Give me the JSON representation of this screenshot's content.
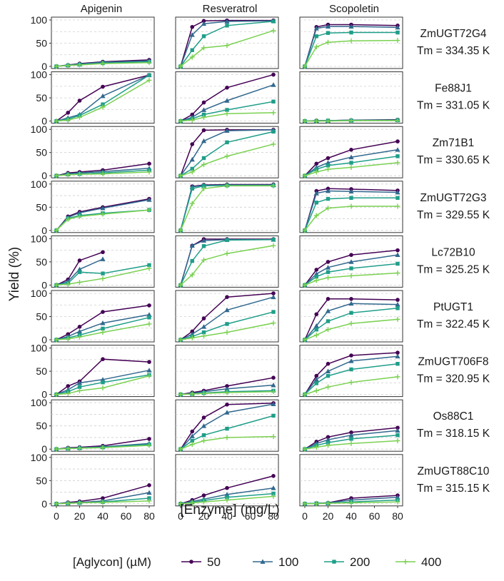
{
  "chart_data": {
    "type": "line",
    "xlabel": "[Enzyme] (mg/L)",
    "ylabel": "Yield (%)",
    "xlim": [
      0,
      80
    ],
    "ylim": [
      0,
      100
    ],
    "x": [
      0,
      10,
      20,
      40,
      80
    ],
    "x_ticks": [
      0,
      20,
      40,
      60,
      80
    ],
    "y_ticks": [
      0,
      50,
      100
    ],
    "columns": [
      "Apigenin",
      "Resveratrol",
      "Scopoletin"
    ],
    "legend_title": "[Aglycon] (µM)",
    "series": [
      {
        "name": "50",
        "color": "#440154",
        "marker": "circle"
      },
      {
        "name": "100",
        "color": "#31688e",
        "marker": "triangle"
      },
      {
        "name": "200",
        "color": "#1f9e89",
        "marker": "square"
      },
      {
        "name": "400",
        "color": "#7ad151",
        "marker": "plus"
      }
    ],
    "rows": [
      {
        "name": "ZmUGT72G4",
        "tm": "Tm = 334.35 K",
        "panels": [
          [
            [
              0,
              3,
              6,
              10,
              14
            ],
            [
              0,
              3,
              5,
              9,
              12
            ],
            [
              0,
              2,
              4,
              7,
              10
            ],
            [
              0,
              2,
              3,
              6,
              8
            ]
          ],
          [
            [
              0,
              85,
              98,
              99,
              99
            ],
            [
              0,
              68,
              92,
              97,
              98
            ],
            [
              0,
              35,
              65,
              88,
              97
            ],
            [
              0,
              20,
              40,
              45,
              77
            ]
          ],
          [
            [
              0,
              85,
              90,
              90,
              88
            ],
            [
              0,
              82,
              86,
              86,
              84
            ],
            [
              0,
              65,
              72,
              73,
              73
            ],
            [
              0,
              42,
              52,
              55,
              56
            ]
          ]
        ]
      },
      {
        "name": "Fe88J1",
        "tm": "Tm = 331.05 K",
        "panels": [
          [
            [
              0,
              18,
              44,
              74,
              99
            ],
            [
              0,
              7,
              14,
              54,
              99
            ],
            [
              0,
              4,
              12,
              36,
              99
            ],
            [
              0,
              2,
              8,
              30,
              88
            ]
          ],
          [
            [
              0,
              14,
              40,
              72,
              100
            ],
            [
              0,
              8,
              24,
              44,
              78
            ],
            [
              0,
              5,
              14,
              24,
              42
            ],
            [
              0,
              2,
              8,
              16,
              18
            ]
          ],
          [
            [
              0,
              1,
              1,
              2,
              3
            ],
            [
              0,
              1,
              1,
              2,
              2
            ],
            [
              0,
              0,
              1,
              1,
              2
            ],
            [
              0,
              0,
              0,
              1,
              1
            ]
          ]
        ]
      },
      {
        "name": "Zm71B1",
        "tm": "Tm = 330.65 K",
        "panels": [
          [
            [
              0,
              6,
              8,
              12,
              26
            ],
            [
              0,
              4,
              6,
              9,
              16
            ],
            [
              0,
              3,
              4,
              6,
              12
            ],
            [
              0,
              2,
              3,
              4,
              8
            ]
          ],
          [
            [
              0,
              68,
              98,
              99,
              99
            ],
            [
              0,
              35,
              75,
              97,
              99
            ],
            [
              0,
              15,
              38,
              72,
              95
            ],
            [
              0,
              8,
              24,
              42,
              68
            ]
          ],
          [
            [
              0,
              26,
              38,
              56,
              74
            ],
            [
              0,
              18,
              28,
              40,
              56
            ],
            [
              0,
              14,
              22,
              28,
              42
            ],
            [
              0,
              8,
              14,
              18,
              28
            ]
          ]
        ]
      },
      {
        "name": "ZmUGT72G3",
        "tm": "Tm = 329.55 K",
        "panels": [
          [
            [
              0,
              30,
              40,
              50,
              68
            ],
            [
              0,
              28,
              38,
              48,
              66
            ],
            [
              0,
              26,
              32,
              37,
              44
            ],
            [
              0,
              24,
              30,
              35,
              44
            ]
          ],
          [
            [
              0,
              95,
              98,
              99,
              99
            ],
            [
              0,
              94,
              97,
              98,
              98
            ],
            [
              0,
              90,
              96,
              97,
              97
            ],
            [
              0,
              58,
              90,
              96,
              96
            ]
          ],
          [
            [
              0,
              85,
              90,
              89,
              86
            ],
            [
              0,
              80,
              85,
              84,
              82
            ],
            [
              0,
              60,
              68,
              70,
              70
            ],
            [
              0,
              32,
              48,
              52,
              52
            ]
          ]
        ]
      },
      {
        "name": "Lc72B10",
        "tm": "Tm = 325.25 K",
        "panels": [
          [
            [
              0,
              12,
              53,
              71,
              null
            ],
            [
              0,
              8,
              34,
              56,
              null
            ],
            [
              0,
              4,
              28,
              25,
              43
            ],
            [
              0,
              2,
              6,
              14,
              36
            ]
          ],
          [
            [
              0,
              85,
              99,
              99,
              99
            ],
            [
              0,
              85,
              96,
              98,
              98
            ],
            [
              0,
              52,
              84,
              97,
              98
            ],
            [
              0,
              22,
              54,
              68,
              85
            ]
          ],
          [
            [
              0,
              33,
              50,
              65,
              75
            ],
            [
              0,
              24,
              38,
              50,
              65
            ],
            [
              0,
              18,
              28,
              36,
              46
            ],
            [
              0,
              10,
              16,
              20,
              26
            ]
          ]
        ]
      },
      {
        "name": "PtUGT1",
        "tm": "Tm = 322.45 K",
        "panels": [
          [
            [
              0,
              12,
              28,
              60,
              74
            ],
            [
              0,
              7,
              18,
              36,
              54
            ],
            [
              0,
              4,
              10,
              24,
              48
            ],
            [
              0,
              2,
              6,
              16,
              34
            ]
          ],
          [
            [
              0,
              18,
              46,
              92,
              100
            ],
            [
              0,
              12,
              28,
              64,
              92
            ],
            [
              0,
              7,
              16,
              34,
              60
            ],
            [
              0,
              4,
              8,
              16,
              36
            ]
          ],
          [
            [
              0,
              55,
              88,
              88,
              86
            ],
            [
              0,
              30,
              62,
              78,
              76
            ],
            [
              0,
              22,
              40,
              58,
              68
            ],
            [
              0,
              10,
              22,
              35,
              44
            ]
          ]
        ]
      },
      {
        "name": "ZmUGT706F8",
        "tm": "Tm = 320.95 K",
        "panels": [
          [
            [
              0,
              18,
              28,
              76,
              70
            ],
            [
              0,
              10,
              25,
              32,
              52
            ],
            [
              0,
              6,
              16,
              26,
              42
            ],
            [
              0,
              2,
              8,
              14,
              40
            ]
          ],
          [
            [
              0,
              4,
              8,
              18,
              36
            ],
            [
              0,
              2,
              6,
              12,
              20
            ],
            [
              0,
              1,
              3,
              6,
              8
            ],
            [
              0,
              1,
              2,
              4,
              6
            ]
          ],
          [
            [
              0,
              40,
              66,
              84,
              90
            ],
            [
              0,
              32,
              50,
              72,
              82
            ],
            [
              0,
              24,
              40,
              54,
              66
            ],
            [
              0,
              8,
              16,
              26,
              38
            ]
          ]
        ]
      },
      {
        "name": "Os88C1",
        "tm": "Tm = 318.15 K",
        "panels": [
          [
            [
              0,
              3,
              4,
              7,
              22
            ],
            [
              0,
              2,
              3,
              5,
              12
            ],
            [
              0,
              1,
              2,
              4,
              10
            ],
            [
              0,
              1,
              2,
              3,
              8
            ]
          ],
          [
            [
              0,
              38,
              68,
              96,
              99
            ],
            [
              0,
              28,
              50,
              79,
              97
            ],
            [
              0,
              18,
              30,
              44,
              72
            ],
            [
              0,
              10,
              18,
              25,
              27
            ]
          ],
          [
            [
              0,
              16,
              26,
              36,
              46
            ],
            [
              0,
              12,
              20,
              30,
              40
            ],
            [
              0,
              8,
              14,
              22,
              30
            ],
            [
              0,
              4,
              8,
              12,
              18
            ]
          ]
        ]
      },
      {
        "name": "ZmUGT88C10",
        "tm": "Tm = 315.15 K",
        "panels": [
          [
            [
              0,
              3,
              5,
              12,
              40
            ],
            [
              0,
              2,
              3,
              6,
              24
            ],
            [
              0,
              1,
              2,
              4,
              12
            ],
            [
              0,
              1,
              2,
              3,
              6
            ]
          ],
          [
            [
              0,
              8,
              18,
              34,
              60
            ],
            [
              0,
              5,
              10,
              20,
              34
            ],
            [
              0,
              3,
              7,
              14,
              22
            ],
            [
              0,
              2,
              4,
              8,
              16
            ]
          ],
          [
            [
              0,
              1,
              2,
              12,
              18
            ],
            [
              0,
              1,
              2,
              8,
              14
            ],
            [
              0,
              1,
              1,
              4,
              8
            ],
            [
              0,
              0,
              1,
              2,
              4
            ]
          ]
        ]
      }
    ]
  }
}
